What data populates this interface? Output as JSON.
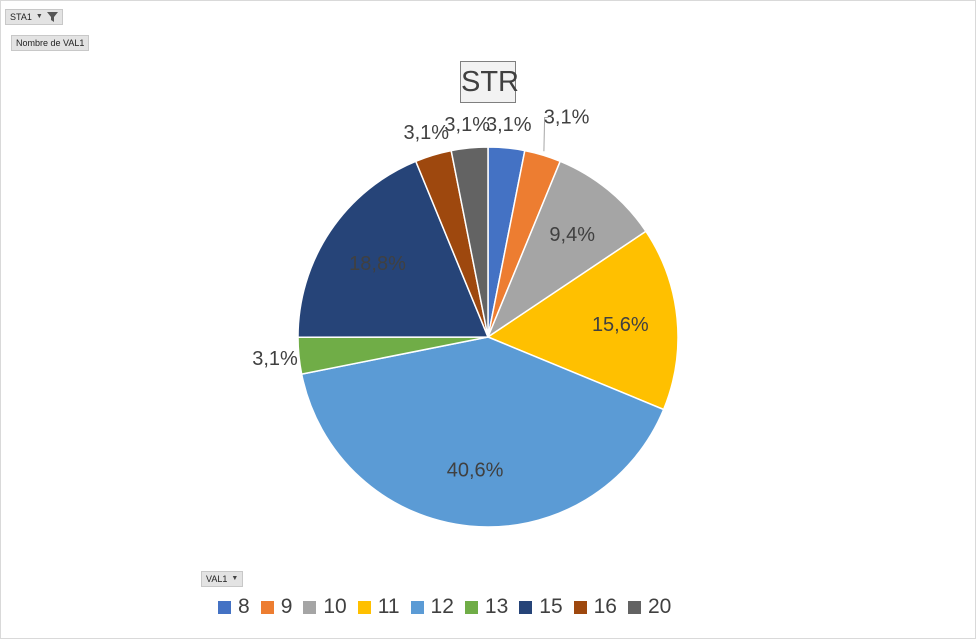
{
  "filter_button": {
    "label": "STA1",
    "icon": "filter-dropdown-icon"
  },
  "value_button": {
    "label": "Nombre de VAL1"
  },
  "axis_button": {
    "label": "VAL1",
    "icon": "dropdown-arrow-icon"
  },
  "chart_data": {
    "type": "pie",
    "title": "STR",
    "legend_position": "bottom",
    "start_angle_deg": 0,
    "direction": "clockwise",
    "slices": [
      {
        "category": "8",
        "percent": 3.1,
        "label": "3,1%",
        "color": "#4472C4",
        "label_position": "outside"
      },
      {
        "category": "9",
        "percent": 3.1,
        "label": "3,1%",
        "color": "#ED7D31",
        "label_position": "outside-leader"
      },
      {
        "category": "10",
        "percent": 9.4,
        "label": "9,4%",
        "color": "#A5A5A5",
        "label_position": "inside"
      },
      {
        "category": "11",
        "percent": 15.6,
        "label": "15,6%",
        "color": "#FFC000",
        "label_position": "inside"
      },
      {
        "category": "12",
        "percent": 40.6,
        "label": "40,6%",
        "color": "#5B9BD5",
        "label_position": "inside"
      },
      {
        "category": "13",
        "percent": 3.1,
        "label": "3,1%",
        "color": "#70AD47",
        "label_position": "outside"
      },
      {
        "category": "15",
        "percent": 18.8,
        "label": "18,8%",
        "color": "#264478",
        "label_position": "inside"
      },
      {
        "category": "16",
        "percent": 3.1,
        "label": "3,1%",
        "color": "#9E480E",
        "label_position": "outside"
      },
      {
        "category": "20",
        "percent": 3.1,
        "label": "3,1%",
        "color": "#636363",
        "label_position": "outside"
      }
    ]
  }
}
